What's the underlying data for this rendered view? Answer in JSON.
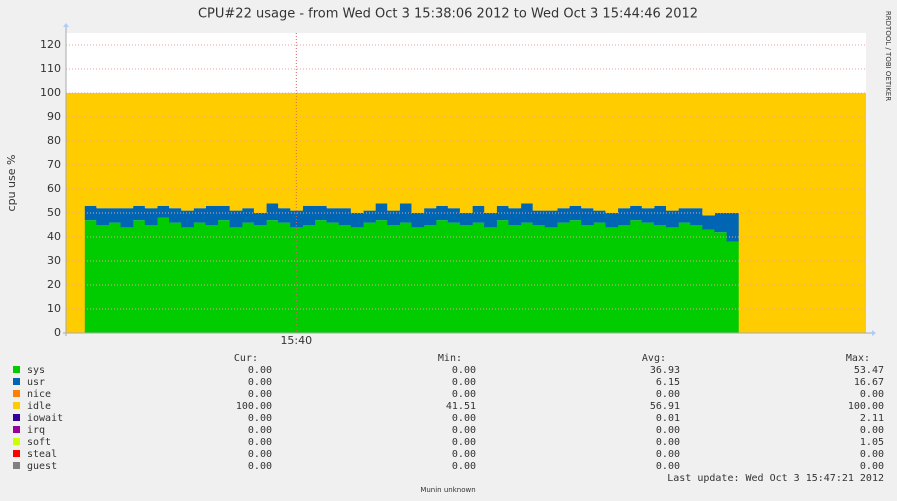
{
  "chart_data": {
    "type": "stacked_area",
    "title": "CPU#22 usage - from Wed Oct  3 15:38:06 2012 to Wed Oct  3 15:44:46 2012",
    "y_label": "cpu use %",
    "side_note": "RRDTOOL / TOBI OETIKER",
    "footer": "Munin unknown",
    "last_update": "Last update:  Wed Oct  3 15:47:21 2012",
    "ylim": [
      0,
      125
    ],
    "yticks": [
      0,
      10,
      20,
      30,
      40,
      50,
      60,
      70,
      80,
      90,
      100,
      110,
      120
    ],
    "grid": true,
    "categories": [
      null,
      null,
      null,
      null,
      null,
      null,
      null,
      null,
      null,
      null,
      null,
      null,
      null,
      null,
      null,
      null,
      null,
      null,
      null,
      "15:40",
      null,
      null,
      null,
      null,
      null,
      null,
      null,
      null,
      null,
      null,
      null,
      null,
      null,
      null,
      null,
      null,
      null,
      null,
      null,
      null,
      null,
      null,
      null,
      null,
      null,
      null,
      null,
      null,
      null,
      null,
      null,
      null,
      null,
      null,
      null,
      null,
      null,
      null,
      null,
      null,
      null,
      null,
      null,
      null,
      null,
      null,
      null
    ],
    "summary_headers": [
      "Cur:",
      "Min:",
      "Avg:",
      "Max:"
    ],
    "series": [
      {
        "name": "sys",
        "color": "#00cc00",
        "summary": [
          "0.00",
          "0.00",
          "36.93",
          "53.47"
        ],
        "values": [
          0,
          0,
          47,
          45,
          46,
          44,
          47,
          45,
          48,
          46,
          44,
          46,
          45,
          47,
          44,
          46,
          45,
          47,
          46,
          44,
          45,
          47,
          46,
          45,
          44,
          46,
          47,
          45,
          46,
          44,
          45,
          47,
          46,
          45,
          46,
          44,
          47,
          45,
          46,
          45,
          44,
          46,
          47,
          45,
          46,
          44,
          45,
          47,
          46,
          45,
          44,
          46,
          45,
          43,
          42,
          38,
          0,
          0,
          0,
          0,
          0,
          0,
          0,
          0,
          0,
          0,
          0
        ]
      },
      {
        "name": "usr",
        "color": "#0066b3",
        "summary": [
          "0.00",
          "0.00",
          "6.15",
          "16.67"
        ],
        "values": [
          0,
          0,
          6,
          7,
          6,
          8,
          6,
          7,
          5,
          6,
          7,
          6,
          8,
          6,
          7,
          6,
          5,
          7,
          6,
          7,
          8,
          6,
          6,
          7,
          6,
          5,
          7,
          6,
          8,
          6,
          7,
          6,
          6,
          5,
          7,
          6,
          6,
          7,
          8,
          6,
          7,
          6,
          6,
          7,
          5,
          6,
          7,
          6,
          6,
          8,
          7,
          6,
          7,
          6,
          8,
          12,
          0,
          0,
          0,
          0,
          0,
          0,
          0,
          0,
          0,
          0,
          0
        ]
      },
      {
        "name": "nice",
        "color": "#ff8000",
        "summary": [
          "0.00",
          "0.00",
          "0.00",
          "0.00"
        ]
      },
      {
        "name": "idle",
        "color": "#ffcc00",
        "summary": [
          "100.00",
          "41.51",
          "56.91",
          "100.00"
        ],
        "values": [
          100,
          100,
          47,
          48,
          48,
          48,
          47,
          48,
          47,
          48,
          49,
          48,
          47,
          47,
          49,
          48,
          50,
          46,
          48,
          49,
          47,
          47,
          48,
          48,
          50,
          49,
          46,
          49,
          46,
          50,
          48,
          47,
          48,
          50,
          47,
          50,
          47,
          48,
          46,
          49,
          49,
          48,
          47,
          48,
          49,
          50,
          48,
          47,
          48,
          47,
          49,
          48,
          48,
          51,
          50,
          50,
          100,
          100,
          100,
          100,
          100,
          100,
          100,
          100,
          100,
          100,
          100
        ]
      },
      {
        "name": "iowait",
        "color": "#330099",
        "summary": [
          "0.00",
          "0.00",
          "0.01",
          "2.11"
        ]
      },
      {
        "name": "irq",
        "color": "#990099",
        "summary": [
          "0.00",
          "0.00",
          "0.00",
          "0.00"
        ]
      },
      {
        "name": "soft",
        "color": "#ccff00",
        "summary": [
          "0.00",
          "0.00",
          "0.00",
          "1.05"
        ]
      },
      {
        "name": "steal",
        "color": "#ff0000",
        "summary": [
          "0.00",
          "0.00",
          "0.00",
          "0.00"
        ]
      },
      {
        "name": "guest",
        "color": "#808080",
        "summary": [
          "0.00",
          "0.00",
          "0.00",
          "0.00"
        ]
      }
    ]
  }
}
